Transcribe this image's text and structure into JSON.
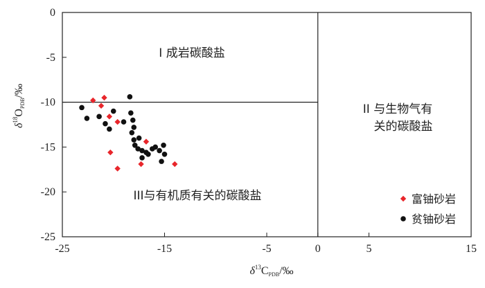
{
  "chart_data": {
    "type": "scatter",
    "xlabel": {
      "delta": "δ",
      "sup": "13",
      "main": "C",
      "sub": "PDB",
      "unit": "/‰"
    },
    "ylabel": {
      "delta": "δ",
      "sup": "18",
      "main": "O",
      "sub": "PDB",
      "unit": "/‰"
    },
    "xlim": [
      -25,
      15
    ],
    "ylim": [
      -25,
      0
    ],
    "xticks": [
      -25,
      -15,
      -5,
      0,
      5,
      15
    ],
    "xtick_labels": [
      "-25",
      "-15",
      "-5",
      "0",
      "5",
      "15"
    ],
    "yticks": [
      0,
      -5,
      -10,
      -15,
      -20,
      -25
    ],
    "ytick_labels": [
      "0",
      "-5",
      "-10",
      "-15",
      "-20",
      "-25"
    ],
    "boundaries": {
      "horizontal_y": -10,
      "vertical_x": 0
    },
    "regions": {
      "region_1": "I 成岩碳酸盐",
      "region_2_line1": "II 与生物气有",
      "region_2_line2": "关的碳酸盐",
      "region_3": "III与有机质有关的碳酸盐"
    },
    "legend_position": "bottom-right",
    "series": [
      {
        "name": "富铀砂岩",
        "color": "#e8262b",
        "marker": "diamond",
        "points": [
          [
            -22.0,
            -9.8
          ],
          [
            -21.2,
            -10.4
          ],
          [
            -20.9,
            -9.5
          ],
          [
            -20.4,
            -11.6
          ],
          [
            -19.6,
            -12.2
          ],
          [
            -20.3,
            -15.6
          ],
          [
            -19.6,
            -17.4
          ],
          [
            -17.3,
            -16.9
          ],
          [
            -16.8,
            -14.4
          ],
          [
            -14.0,
            -16.9
          ]
        ]
      },
      {
        "name": "贫铀砂岩",
        "color": "#111111",
        "marker": "circle",
        "points": [
          [
            -23.1,
            -10.6
          ],
          [
            -22.6,
            -11.8
          ],
          [
            -21.4,
            -11.6
          ],
          [
            -20.8,
            -12.4
          ],
          [
            -20.4,
            -13.0
          ],
          [
            -20.0,
            -11.0
          ],
          [
            -19.0,
            -12.2
          ],
          [
            -18.4,
            -9.4
          ],
          [
            -18.3,
            -11.2
          ],
          [
            -18.1,
            -12.0
          ],
          [
            -18.0,
            -12.8
          ],
          [
            -18.2,
            -13.4
          ],
          [
            -18.0,
            -14.2
          ],
          [
            -17.9,
            -14.8
          ],
          [
            -17.6,
            -15.2
          ],
          [
            -17.5,
            -14.0
          ],
          [
            -17.2,
            -15.4
          ],
          [
            -16.8,
            -15.6
          ],
          [
            -16.2,
            -15.2
          ],
          [
            -15.9,
            -15.0
          ],
          [
            -15.5,
            -15.4
          ],
          [
            -15.3,
            -16.6
          ],
          [
            -15.1,
            -14.8
          ],
          [
            -15.0,
            -15.8
          ],
          [
            -17.2,
            -16.2
          ],
          [
            -16.6,
            -15.8
          ]
        ]
      }
    ]
  }
}
